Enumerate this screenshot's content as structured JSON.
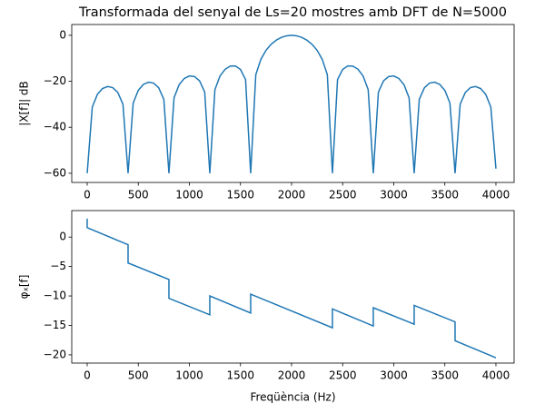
{
  "chart_data": [
    {
      "type": "line",
      "title": "Transformada del senyal de Ls=20 mostres amb DFT de N=5000",
      "ylabel": "|X[f]| dB",
      "x": [
        0,
        50,
        100,
        150,
        200,
        250,
        300,
        350,
        400,
        450,
        500,
        550,
        600,
        650,
        700,
        750,
        800,
        850,
        900,
        950,
        1000,
        1050,
        1100,
        1150,
        1200,
        1250,
        1300,
        1350,
        1400,
        1450,
        1500,
        1550,
        1600,
        1650,
        1700,
        1750,
        1800,
        1850,
        1900,
        1950,
        2000,
        2050,
        2100,
        2150,
        2200,
        2250,
        2300,
        2350,
        2400,
        2450,
        2500,
        2550,
        2600,
        2650,
        2700,
        2750,
        2800,
        2850,
        2900,
        2950,
        3000,
        3050,
        3100,
        3150,
        3200,
        3250,
        3300,
        3350,
        3400,
        3450,
        3500,
        3550,
        3600,
        3650,
        3700,
        3750,
        3800,
        3850,
        3900,
        3950,
        4000
      ],
      "series": [
        {
          "color": "#1f77b4",
          "values": [
            -60,
            -31.18,
            -25.67,
            -23.16,
            -22.27,
            -22.76,
            -24.87,
            -29.98,
            -60,
            -29.51,
            -23.93,
            -21.34,
            -20.38,
            -20.79,
            -22.81,
            -27.83,
            -60,
            -27.16,
            -21.47,
            -18.77,
            -17.68,
            -17.94,
            -19.82,
            -24.67,
            -60,
            -23.62,
            -17.7,
            -14.75,
            -13.39,
            -13.33,
            -14.84,
            -19.26,
            -60,
            -17.1,
            -10.43,
            -6.53,
            -3.91,
            -2.11,
            -0.91,
            -0.22,
            0,
            -0.22,
            -0.91,
            -2.11,
            -3.91,
            -6.53,
            -10.43,
            -17.1,
            -60,
            -19.26,
            -14.84,
            -13.33,
            -13.39,
            -14.75,
            -17.7,
            -23.62,
            -60,
            -24.67,
            -19.82,
            -17.94,
            -17.68,
            -18.77,
            -21.47,
            -27.16,
            -60,
            -27.83,
            -22.81,
            -20.79,
            -20.38,
            -21.34,
            -23.93,
            -29.51,
            -60,
            -29.98,
            -24.87,
            -22.76,
            -22.27,
            -23.16,
            -25.67,
            -31.18,
            -58
          ]
        }
      ],
      "xlim": [
        -151,
        4178
      ],
      "xticks": [
        0,
        500,
        1000,
        1500,
        2000,
        2500,
        3000,
        3500,
        4000
      ],
      "ylim": [
        -64,
        4.7
      ],
      "yticks": [
        0,
        {
          "value": -20,
          "label": "−20"
        },
        {
          "value": -40,
          "label": "−40"
        },
        {
          "value": -60,
          "label": "−60"
        }
      ]
    },
    {
      "type": "line",
      "ylabel": "φₓ[f]",
      "xlabel": "Freqüència (Hz)",
      "x": [
        0,
        0,
        400,
        400,
        800,
        800,
        1200,
        1200,
        1600,
        1600,
        2400,
        2400,
        2800,
        2800,
        3200,
        3200,
        3600,
        3600,
        4000
      ],
      "series": [
        {
          "color": "#1f77b4",
          "values": [
            3.14,
            1.6,
            -1.3,
            -4.4,
            -7.2,
            -10.4,
            -13.2,
            -10.0,
            -12.9,
            -9.7,
            -15.4,
            -12.2,
            -15.1,
            -12.0,
            -14.8,
            -11.6,
            -14.4,
            -17.6,
            -20.5
          ]
        }
      ],
      "xlim": [
        -151,
        4178
      ],
      "xticks": [
        0,
        500,
        1000,
        1500,
        2000,
        2500,
        3000,
        3500,
        4000
      ],
      "ylim": [
        -21.4,
        4.5
      ],
      "yticks": [
        0,
        {
          "value": -5,
          "label": "−5"
        },
        {
          "value": -10,
          "label": "−10"
        },
        {
          "value": -15,
          "label": "−15"
        },
        {
          "value": -20,
          "label": "−20"
        }
      ]
    }
  ]
}
